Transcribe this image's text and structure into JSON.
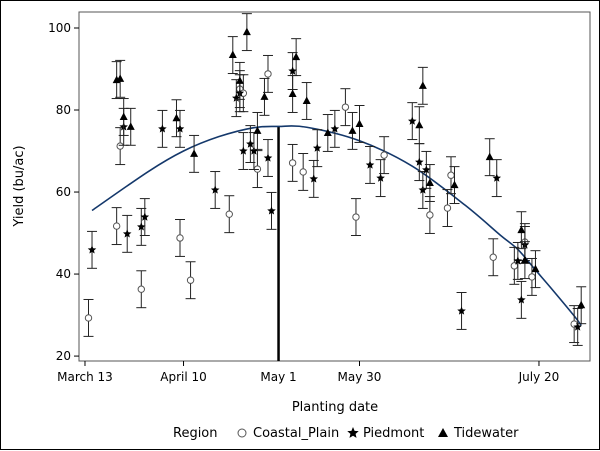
{
  "chart_data": {
    "type": "scatter",
    "title": "",
    "xlabel": "Planting date",
    "ylabel": "Yield (bu/ac)",
    "x_unit": "day of year",
    "xlim": [
      70.3,
      215.5
    ],
    "ylim": [
      18.8,
      103.9
    ],
    "x_ticks": [
      {
        "value": 72,
        "label": "March 13"
      },
      {
        "value": 100,
        "label": "April 10"
      },
      {
        "value": 150,
        "label": "May 30"
      },
      {
        "value": 201,
        "label": "July 20"
      }
    ],
    "y_ticks": [
      20,
      40,
      60,
      80,
      100
    ],
    "reference_line": {
      "x": 127,
      "label": "May 1"
    },
    "error_halfwidth": 4.5,
    "legend": {
      "title": "Region",
      "placement": "bottom"
    },
    "series": [
      {
        "name": "Coastal_Plain",
        "marker": "open-circle",
        "color": "#555555",
        "points": [
          [
            73,
            29.3
          ],
          [
            81,
            51.7
          ],
          [
            82,
            71.2
          ],
          [
            88,
            36.3
          ],
          [
            99,
            48.8
          ],
          [
            102,
            38.5
          ],
          [
            113,
            54.6
          ],
          [
            116,
            85.1
          ],
          [
            117,
            84.1
          ],
          [
            121,
            65.6
          ],
          [
            124,
            88.8
          ],
          [
            131,
            67.1
          ],
          [
            134,
            64.9
          ],
          [
            146,
            80.7
          ],
          [
            149,
            53.9
          ],
          [
            157,
            69.0
          ],
          [
            170,
            54.4
          ],
          [
            175,
            56.1
          ],
          [
            176,
            64.1
          ],
          [
            188,
            44.1
          ],
          [
            194,
            42.0
          ],
          [
            197,
            47.8
          ],
          [
            199,
            39.3
          ],
          [
            211,
            27.8
          ]
        ]
      },
      {
        "name": "Piedmont",
        "marker": "star",
        "color": "#000000",
        "points": [
          [
            74,
            45.9
          ],
          [
            84,
            49.8
          ],
          [
            83,
            75.9
          ],
          [
            88,
            51.5
          ],
          [
            89,
            53.9
          ],
          [
            94,
            75.4
          ],
          [
            99,
            75.4
          ],
          [
            109,
            60.5
          ],
          [
            115,
            82.9
          ],
          [
            116,
            84.1
          ],
          [
            117,
            70.0
          ],
          [
            119,
            71.7
          ],
          [
            120,
            70.0
          ],
          [
            124,
            68.3
          ],
          [
            125,
            55.4
          ],
          [
            131,
            89.5
          ],
          [
            137,
            63.2
          ],
          [
            138,
            70.7
          ],
          [
            143,
            75.4
          ],
          [
            153,
            66.6
          ],
          [
            156,
            63.4
          ],
          [
            165,
            77.3
          ],
          [
            167,
            67.3
          ],
          [
            168,
            60.5
          ],
          [
            169,
            65.4
          ],
          [
            179,
            31.0
          ],
          [
            189,
            63.4
          ],
          [
            195,
            43.2
          ],
          [
            196,
            33.7
          ],
          [
            197,
            47.1
          ],
          [
            212,
            27.1
          ]
        ]
      },
      {
        "name": "Tidewater",
        "marker": "triangle",
        "color": "#000000",
        "points": [
          [
            81,
            87.3
          ],
          [
            82,
            87.6
          ],
          [
            83,
            78.3
          ],
          [
            85,
            75.9
          ],
          [
            98,
            78.0
          ],
          [
            103,
            69.3
          ],
          [
            114,
            93.4
          ],
          [
            116,
            87.1
          ],
          [
            118,
            99.0
          ],
          [
            121,
            74.9
          ],
          [
            123,
            83.2
          ],
          [
            131,
            83.9
          ],
          [
            132,
            92.9
          ],
          [
            135,
            82.2
          ],
          [
            141,
            74.4
          ],
          [
            148,
            74.9
          ],
          [
            150,
            76.6
          ],
          [
            167,
            76.3
          ],
          [
            168,
            85.9
          ],
          [
            170,
            62.2
          ],
          [
            177,
            61.7
          ],
          [
            187,
            68.5
          ],
          [
            196,
            50.7
          ],
          [
            197,
            43.4
          ],
          [
            200,
            41.2
          ],
          [
            213,
            32.4
          ]
        ]
      }
    ],
    "fit_curve": {
      "color": "#14386b",
      "points": [
        [
          74,
          55.5
        ],
        [
          90,
          65
        ],
        [
          100,
          70
        ],
        [
          110,
          73.5
        ],
        [
          120,
          75.7
        ],
        [
          127,
          76
        ],
        [
          135,
          75.8
        ],
        [
          150,
          72.5
        ],
        [
          165,
          66.3
        ],
        [
          180,
          56.8
        ],
        [
          190,
          49.5
        ],
        [
          195,
          46
        ],
        [
          200,
          41
        ],
        [
          205,
          36
        ],
        [
          211,
          29.8
        ],
        [
          213,
          27.5
        ]
      ]
    }
  }
}
